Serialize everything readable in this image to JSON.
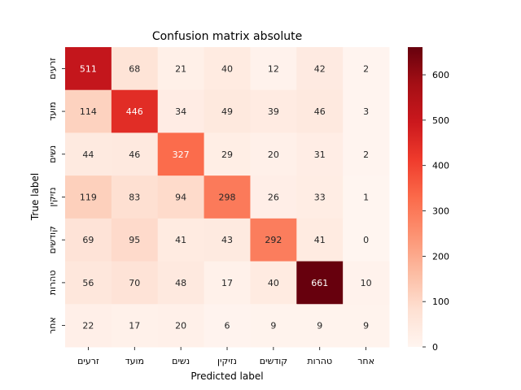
{
  "chart_data": {
    "type": "heatmap",
    "title": "Confusion matrix absolute",
    "xlabel": "Predicted label",
    "ylabel": "True label",
    "x_categories": [
      "זרעים",
      "מועד",
      "נשים",
      "נזיקין",
      "קודשים",
      "טהרות",
      "אחר"
    ],
    "y_categories": [
      "זרעים",
      "מועד",
      "נשים",
      "נזיקין",
      "קודשים",
      "טהרות",
      "אחר"
    ],
    "values": [
      [
        511,
        68,
        21,
        40,
        12,
        42,
        2
      ],
      [
        114,
        446,
        34,
        49,
        39,
        46,
        3
      ],
      [
        44,
        46,
        327,
        29,
        20,
        31,
        2
      ],
      [
        119,
        83,
        94,
        298,
        26,
        33,
        1
      ],
      [
        69,
        95,
        41,
        43,
        292,
        41,
        0
      ],
      [
        56,
        70,
        48,
        17,
        40,
        661,
        10
      ],
      [
        22,
        17,
        20,
        6,
        9,
        9,
        9
      ]
    ],
    "colormap": "Reds",
    "vmin": 0,
    "vmax": 661,
    "colorbar_ticks": [
      0,
      100,
      200,
      300,
      400,
      500,
      600
    ]
  }
}
